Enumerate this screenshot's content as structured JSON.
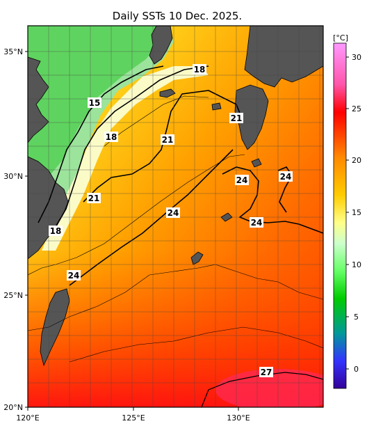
{
  "title": "Daily SSTs 10 Dec. 2025.",
  "lat_labels": [
    "35°N",
    "30°N",
    "25°N",
    "20°N"
  ],
  "lon_labels": [
    "120°E",
    "125°E",
    "130°E"
  ],
  "colorbar": {
    "unit": "[°C]",
    "ticks": [
      "30",
      "25",
      "20",
      "15",
      "10",
      "5",
      "0"
    ],
    "colors": [
      "#ff8cff",
      "#ff0000",
      "#ff9900",
      "#ffff66",
      "#ccffcc",
      "#00cc00",
      "#3333ff",
      "#330099"
    ]
  },
  "contour_labels": [
    "18",
    "15",
    "18",
    "21",
    "21",
    "24",
    "24",
    "24",
    "21",
    "18",
    "24",
    "24",
    "27"
  ],
  "colors": {
    "land": "#555555",
    "coast": "#000000",
    "grid": "#444444"
  }
}
